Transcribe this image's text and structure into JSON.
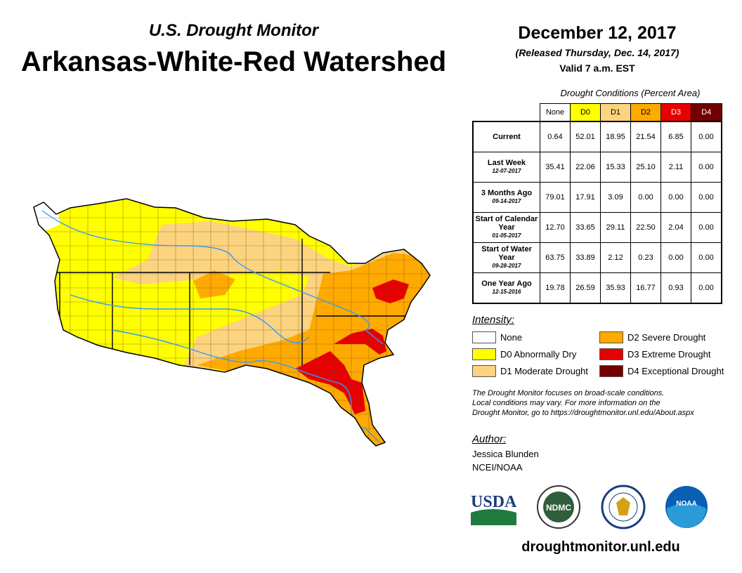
{
  "header": {
    "subtitle": "U.S. Drought Monitor",
    "title": "Arkansas-White-Red Watershed",
    "date": "December 12, 2017",
    "released": "(Released Thursday, Dec. 14, 2017)",
    "valid": "Valid 7 a.m. EST"
  },
  "table": {
    "caption": "Drought Conditions (Percent Area)",
    "columns": [
      "None",
      "D0",
      "D1",
      "D2",
      "D3",
      "D4"
    ],
    "column_colors": [
      "#ffffff",
      "#ffff00",
      "#fcd37f",
      "#ffaa00",
      "#e60000",
      "#730000"
    ],
    "rows": [
      {
        "label": "Current",
        "date": "",
        "values": [
          "0.64",
          "52.01",
          "18.95",
          "21.54",
          "6.85",
          "0.00"
        ]
      },
      {
        "label": "Last Week",
        "date": "12-07-2017",
        "values": [
          "35.41",
          "22.06",
          "15.33",
          "25.10",
          "2.11",
          "0.00"
        ]
      },
      {
        "label": "3 Months Ago",
        "date": "09-14-2017",
        "values": [
          "79.01",
          "17.91",
          "3.09",
          "0.00",
          "0.00",
          "0.00"
        ]
      },
      {
        "label": "Start of Calendar Year",
        "date": "01-05-2017",
        "values": [
          "12.70",
          "33.65",
          "29.11",
          "22.50",
          "2.04",
          "0.00"
        ]
      },
      {
        "label": "Start of Water Year",
        "date": "09-28-2017",
        "values": [
          "63.75",
          "33.89",
          "2.12",
          "0.23",
          "0.00",
          "0.00"
        ]
      },
      {
        "label": "One Year Ago",
        "date": "12-15-2016",
        "values": [
          "19.78",
          "26.59",
          "35.93",
          "16.77",
          "0.93",
          "0.00"
        ]
      }
    ]
  },
  "legend": {
    "title": "Intensity:",
    "items": [
      {
        "label": "None",
        "color": "#ffffff"
      },
      {
        "label": "D0 Abnormally Dry",
        "color": "#ffff00"
      },
      {
        "label": "D1 Moderate Drought",
        "color": "#fcd37f"
      },
      {
        "label": "D2 Severe Drought",
        "color": "#ffaa00"
      },
      {
        "label": "D3 Extreme Drought",
        "color": "#e60000"
      },
      {
        "label": "D4 Exceptional Drought",
        "color": "#730000"
      }
    ]
  },
  "note": [
    "The Drought Monitor focuses on broad-scale conditions.",
    "Local conditions may vary. For more information on the",
    "Drought Monitor, go to https://droughtmonitor.unl.edu/About.aspx"
  ],
  "author": {
    "title": "Author:",
    "name": "Jessica Blunden",
    "org": "NCEI/NOAA"
  },
  "logos": {
    "usda": "USDA",
    "ndmc": "NDMC",
    "noaa": "NOAA"
  },
  "footer": {
    "url": "droughtmonitor.unl.edu"
  }
}
